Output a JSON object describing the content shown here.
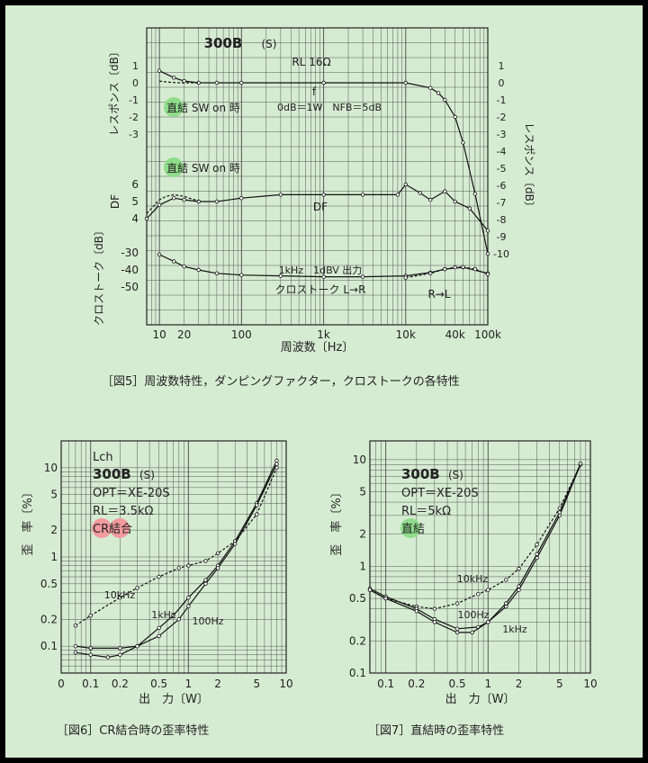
{
  "captions": {
    "fig5": "［図5］周波数特性，ダンピングファクター，クロストークの各特性",
    "fig6": "［図6］CR結合時の歪率特性",
    "fig7": "［図7］直結時の歪率特性"
  },
  "colors": {
    "background": "#d6ecd2",
    "badge_green": "#8fdc8a",
    "badge_pink": "#f39a9f",
    "grid": "#555555"
  },
  "chart_data": [
    {
      "id": "fig5",
      "type": "line",
      "x_scale": "log",
      "xlim": [
        7,
        100000
      ],
      "xlabel": "周波数〔Hz〕",
      "x_ticks": [
        {
          "v": 10,
          "label": "10"
        },
        {
          "v": 20,
          "label": "20"
        },
        {
          "v": 100,
          "label": "100"
        },
        {
          "v": 1000,
          "label": "1k"
        },
        {
          "v": 10000,
          "label": "10k"
        },
        {
          "v": 40000,
          "label": "40k"
        },
        {
          "v": 100000,
          "label": "100k"
        }
      ],
      "title": "300B",
      "title_suffix": "(S)",
      "load": "RL 16Ω",
      "conditions": "0dB＝1W　NFB＝5dB",
      "panels": [
        {
          "name": "response",
          "ylabel_left": "レスポンス〔dB〕",
          "ylabel_right": "レスポンス〔dB〕",
          "left_ticks": [
            "1",
            "0",
            "-1",
            "-2",
            "-3"
          ],
          "right_ticks": [
            "1",
            "0",
            "-1",
            "-2",
            "-3",
            "-4",
            "-5",
            "-6",
            "-7",
            "-8",
            "-9",
            "-10"
          ],
          "series": [
            {
              "label": "f",
              "x": [
                10,
                15,
                20,
                30,
                50,
                100,
                1000,
                10000,
                20000,
                25000,
                30000,
                40000,
                50000,
                70000,
                100000
              ],
              "y": [
                0.7,
                0.3,
                0.1,
                0,
                0,
                0,
                0,
                0,
                -0.3,
                -0.6,
                -1.0,
                -2.0,
                -3.5,
                -6.5,
                -10.0
              ]
            },
            {
              "label": "直結 SW on 時",
              "x": [
                10,
                12,
                14,
                17,
                20,
                25,
                30
              ],
              "y": [
                0.1,
                0.05,
                0.02,
                0,
                0,
                0,
                0
              ]
            }
          ]
        },
        {
          "name": "DF",
          "ylabel": "DF",
          "ticks": [
            "6",
            "5",
            "4"
          ],
          "series": [
            {
              "label": "DF",
              "x": [
                7,
                10,
                15,
                20,
                30,
                50,
                100,
                300,
                1000,
                3000,
                8000,
                10000,
                15000,
                20000,
                30000,
                40000,
                60000,
                100000
              ],
              "y": [
                4.0,
                4.8,
                5.2,
                5.1,
                5.0,
                5.0,
                5.2,
                5.4,
                5.4,
                5.4,
                5.4,
                6.0,
                5.5,
                5.1,
                5.6,
                5.0,
                4.6,
                3.3
              ]
            },
            {
              "label": "直結 SW on 時",
              "x": [
                7,
                10,
                12,
                15,
                20,
                25,
                30
              ],
              "y": [
                4.3,
                5.1,
                5.3,
                5.4,
                5.3,
                5.15,
                5.05
              ]
            }
          ]
        },
        {
          "name": "crosstalk",
          "ylabel": "クロストーク〔dB〕",
          "ticks": [
            "-30",
            "-40",
            "-50"
          ],
          "annotation": "1kHz　1dBV 出力",
          "series": [
            {
              "label": "クロストーク L→R",
              "x": [
                10,
                15,
                20,
                30,
                50,
                100,
                300,
                1000,
                3000,
                10000,
                20000,
                30000,
                50000,
                100000
              ],
              "y": [
                -31,
                -35,
                -38,
                -40,
                -42,
                -43,
                -43.5,
                -44,
                -44,
                -43.5,
                -41.5,
                -39.5,
                -38.5,
                -42
              ]
            },
            {
              "label": "R→L",
              "x": [
                10000,
                20000,
                30000,
                40000,
                50000,
                70000,
                100000
              ],
              "y": [
                -44.5,
                -42,
                -39.5,
                -38.5,
                -38.3,
                -39.5,
                -42.5
              ]
            }
          ]
        }
      ]
    },
    {
      "id": "fig6",
      "type": "line",
      "x_scale": "log",
      "y_scale": "log",
      "xlim": [
        0.05,
        10
      ],
      "ylim": [
        0.05,
        20
      ],
      "xlabel": "出　力〔W〕",
      "ylabel": "歪　率〔%〕",
      "x_ticks": [
        "0",
        "0.1",
        "0.2",
        "0.5",
        "1",
        "2",
        "5",
        "10"
      ],
      "y_ticks": [
        "10",
        "5",
        "2",
        "1",
        "0.5",
        "0.2",
        "0.1"
      ],
      "legend": [
        "Lch",
        "300B",
        "(S)",
        "OPT＝XE-20S",
        "RL＝3.5kΩ",
        "CR結合"
      ],
      "series": [
        {
          "name": "10kHz",
          "x": [
            0.07,
            0.1,
            0.2,
            0.3,
            0.5,
            0.8,
            1.0,
            1.5,
            2.0,
            3.0,
            5.0,
            8.0
          ],
          "y": [
            0.17,
            0.22,
            0.35,
            0.45,
            0.6,
            0.75,
            0.8,
            0.9,
            1.1,
            1.5,
            3.0,
            10.0
          ]
        },
        {
          "name": "1kHz",
          "x": [
            0.07,
            0.1,
            0.15,
            0.2,
            0.3,
            0.5,
            0.7,
            1.0,
            1.5,
            2.0,
            3.0,
            5.0,
            8.0
          ],
          "y": [
            0.085,
            0.08,
            0.075,
            0.08,
            0.1,
            0.16,
            0.22,
            0.35,
            0.55,
            0.8,
            1.5,
            4.0,
            12.0
          ]
        },
        {
          "name": "100Hz",
          "x": [
            0.07,
            0.1,
            0.2,
            0.3,
            0.5,
            0.8,
            1.0,
            1.5,
            2.0,
            3.0,
            5.0,
            8.0
          ],
          "y": [
            0.1,
            0.095,
            0.095,
            0.1,
            0.13,
            0.2,
            0.28,
            0.5,
            0.75,
            1.4,
            3.8,
            11.0
          ]
        }
      ]
    },
    {
      "id": "fig7",
      "type": "line",
      "x_scale": "log",
      "y_scale": "log",
      "xlim": [
        0.07,
        10
      ],
      "ylim": [
        0.1,
        15
      ],
      "xlabel": "出　力〔W〕",
      "ylabel": "歪　率〔%〕",
      "x_ticks": [
        "0.1",
        "0.2",
        "0.5",
        "1",
        "2",
        "5",
        "10"
      ],
      "y_ticks": [
        "10",
        "5",
        "2",
        "1",
        "0.5",
        "0.2",
        "0.1"
      ],
      "legend": [
        "300B",
        "(S)",
        "OPT＝XE-20S",
        "RL＝5kΩ",
        "直結"
      ],
      "series": [
        {
          "name": "10kHz",
          "x": [
            0.07,
            0.1,
            0.2,
            0.3,
            0.5,
            0.8,
            1.0,
            1.5,
            2.0,
            3.0,
            5.0,
            8.0
          ],
          "y": [
            0.6,
            0.5,
            0.42,
            0.4,
            0.45,
            0.55,
            0.6,
            0.75,
            0.95,
            1.6,
            3.5,
            9.0
          ]
        },
        {
          "name": "100Hz",
          "x": [
            0.07,
            0.1,
            0.2,
            0.3,
            0.5,
            0.8,
            1.0,
            1.5,
            2.0,
            3.0,
            5.0,
            8.0
          ],
          "y": [
            0.62,
            0.52,
            0.4,
            0.32,
            0.26,
            0.27,
            0.3,
            0.42,
            0.6,
            1.2,
            3.0,
            9.0
          ]
        },
        {
          "name": "1kHz",
          "x": [
            0.07,
            0.1,
            0.2,
            0.3,
            0.5,
            0.7,
            1.0,
            1.5,
            2.0,
            3.0,
            5.0,
            8.0
          ],
          "y": [
            0.6,
            0.5,
            0.38,
            0.3,
            0.24,
            0.24,
            0.3,
            0.45,
            0.65,
            1.3,
            3.2,
            9.2
          ]
        }
      ]
    }
  ]
}
